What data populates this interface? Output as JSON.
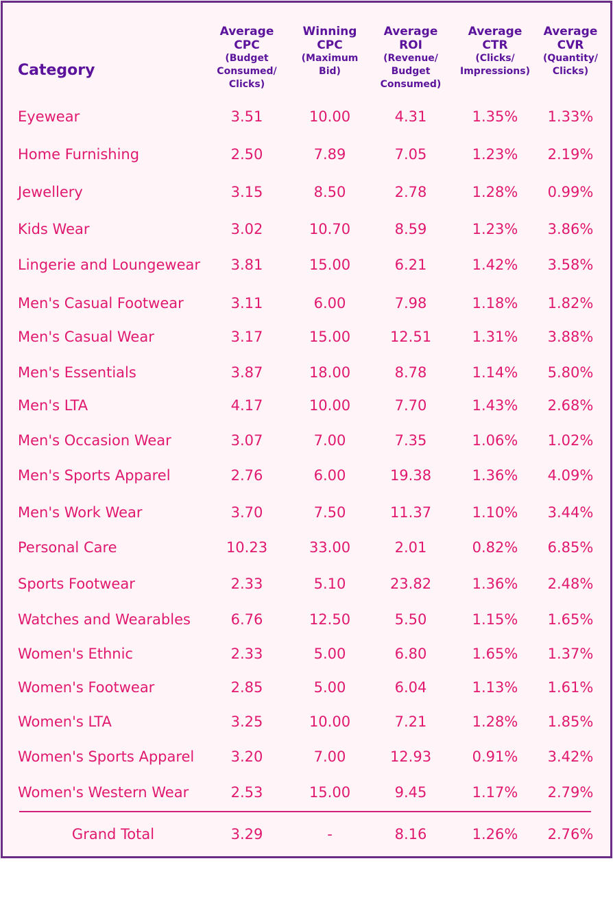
{
  "header": {
    "category": "Category",
    "columns": [
      {
        "main": [
          "Average",
          "CPC"
        ],
        "sub": [
          "(Budget",
          "Consumed/",
          "Clicks)"
        ]
      },
      {
        "main": [
          "Winning",
          "CPC"
        ],
        "sub": [
          "(Maximum",
          "Bid)"
        ]
      },
      {
        "main": [
          "Average",
          "ROI"
        ],
        "sub": [
          "(Revenue/",
          "Budget",
          "Consumed)"
        ]
      },
      {
        "main": [
          "Average",
          "CTR"
        ],
        "sub": [
          "(Clicks/",
          "Impressions)"
        ]
      },
      {
        "main": [
          "Average",
          "CVR"
        ],
        "sub": [
          "(Quantity/",
          "Clicks)"
        ]
      }
    ]
  },
  "rows": [
    {
      "category": "Eyewear",
      "cpc": "3.51",
      "win": "10.00",
      "roi": "4.31",
      "ctr": "1.35%",
      "cvr": "1.33%"
    },
    {
      "category": "Home Furnishing",
      "cpc": "2.50",
      "win": "7.89",
      "roi": "7.05",
      "ctr": "1.23%",
      "cvr": "2.19%"
    },
    {
      "category": "Jewellery",
      "cpc": "3.15",
      "win": "8.50",
      "roi": "2.78",
      "ctr": "1.28%",
      "cvr": "0.99%"
    },
    {
      "category": "Kids Wear",
      "cpc": "3.02",
      "win": "10.70",
      "roi": "8.59",
      "ctr": "1.23%",
      "cvr": "3.86%"
    },
    {
      "category": "Lingerie and Loungewear",
      "cpc": "3.81",
      "win": "15.00",
      "roi": "6.21",
      "ctr": "1.42%",
      "cvr": "3.58%"
    },
    {
      "category": "Men's Casual Footwear",
      "cpc": "3.11",
      "win": "6.00",
      "roi": "7.98",
      "ctr": "1.18%",
      "cvr": "1.82%"
    },
    {
      "category": "Men's Casual Wear",
      "cpc": "3.17",
      "win": "15.00",
      "roi": "12.51",
      "ctr": "1.31%",
      "cvr": "3.88%"
    },
    {
      "category": "Men's Essentials",
      "cpc": "3.87",
      "win": "18.00",
      "roi": "8.78",
      "ctr": "1.14%",
      "cvr": "5.80%"
    },
    {
      "category": "Men's LTA",
      "cpc": "4.17",
      "win": "10.00",
      "roi": "7.70",
      "ctr": "1.43%",
      "cvr": "2.68%"
    },
    {
      "category": "Men's Occasion Wear",
      "cpc": "3.07",
      "win": "7.00",
      "roi": "7.35",
      "ctr": "1.06%",
      "cvr": "1.02%"
    },
    {
      "category": "Men's Sports Apparel",
      "cpc": "2.76",
      "win": "6.00",
      "roi": "19.38",
      "ctr": "1.36%",
      "cvr": "4.09%"
    },
    {
      "category": "Men's Work Wear",
      "cpc": "3.70",
      "win": "7.50",
      "roi": "11.37",
      "ctr": "1.10%",
      "cvr": "3.44%"
    },
    {
      "category": "Personal Care",
      "cpc": "10.23",
      "win": "33.00",
      "roi": "2.01",
      "ctr": "0.82%",
      "cvr": "6.85%"
    },
    {
      "category": "Sports Footwear",
      "cpc": "2.33",
      "win": "5.10",
      "roi": "23.82",
      "ctr": "1.36%",
      "cvr": "2.48%"
    },
    {
      "category": "Watches and Wearables",
      "cpc": "6.76",
      "win": "12.50",
      "roi": "5.50",
      "ctr": "1.15%",
      "cvr": "1.65%"
    },
    {
      "category": "Women's Ethnic",
      "cpc": "2.33",
      "win": "5.00",
      "roi": "6.80",
      "ctr": "1.65%",
      "cvr": "1.37%"
    },
    {
      "category": "Women's Footwear",
      "cpc": "2.85",
      "win": "5.00",
      "roi": "6.04",
      "ctr": "1.13%",
      "cvr": "1.61%"
    },
    {
      "category": "Women's LTA",
      "cpc": "3.25",
      "win": "10.00",
      "roi": "7.21",
      "ctr": "1.28%",
      "cvr": "1.85%"
    },
    {
      "category": "Women's Sports Apparel",
      "cpc": "3.20",
      "win": "7.00",
      "roi": "12.93",
      "ctr": "0.91%",
      "cvr": "3.42%"
    },
    {
      "category": "Women's Western Wear",
      "cpc": "2.53",
      "win": "15.00",
      "roi": "9.45",
      "ctr": "1.17%",
      "cvr": "2.79%"
    }
  ],
  "total": {
    "category": "Grand Total",
    "cpc": "3.29",
    "win": "-",
    "roi": "8.16",
    "ctr": "1.26%",
    "cvr": "2.76%"
  },
  "colors": {
    "border": "#6b2c86",
    "header": "#5b139c",
    "text": "#e0196e",
    "background": "#fff5f9"
  }
}
